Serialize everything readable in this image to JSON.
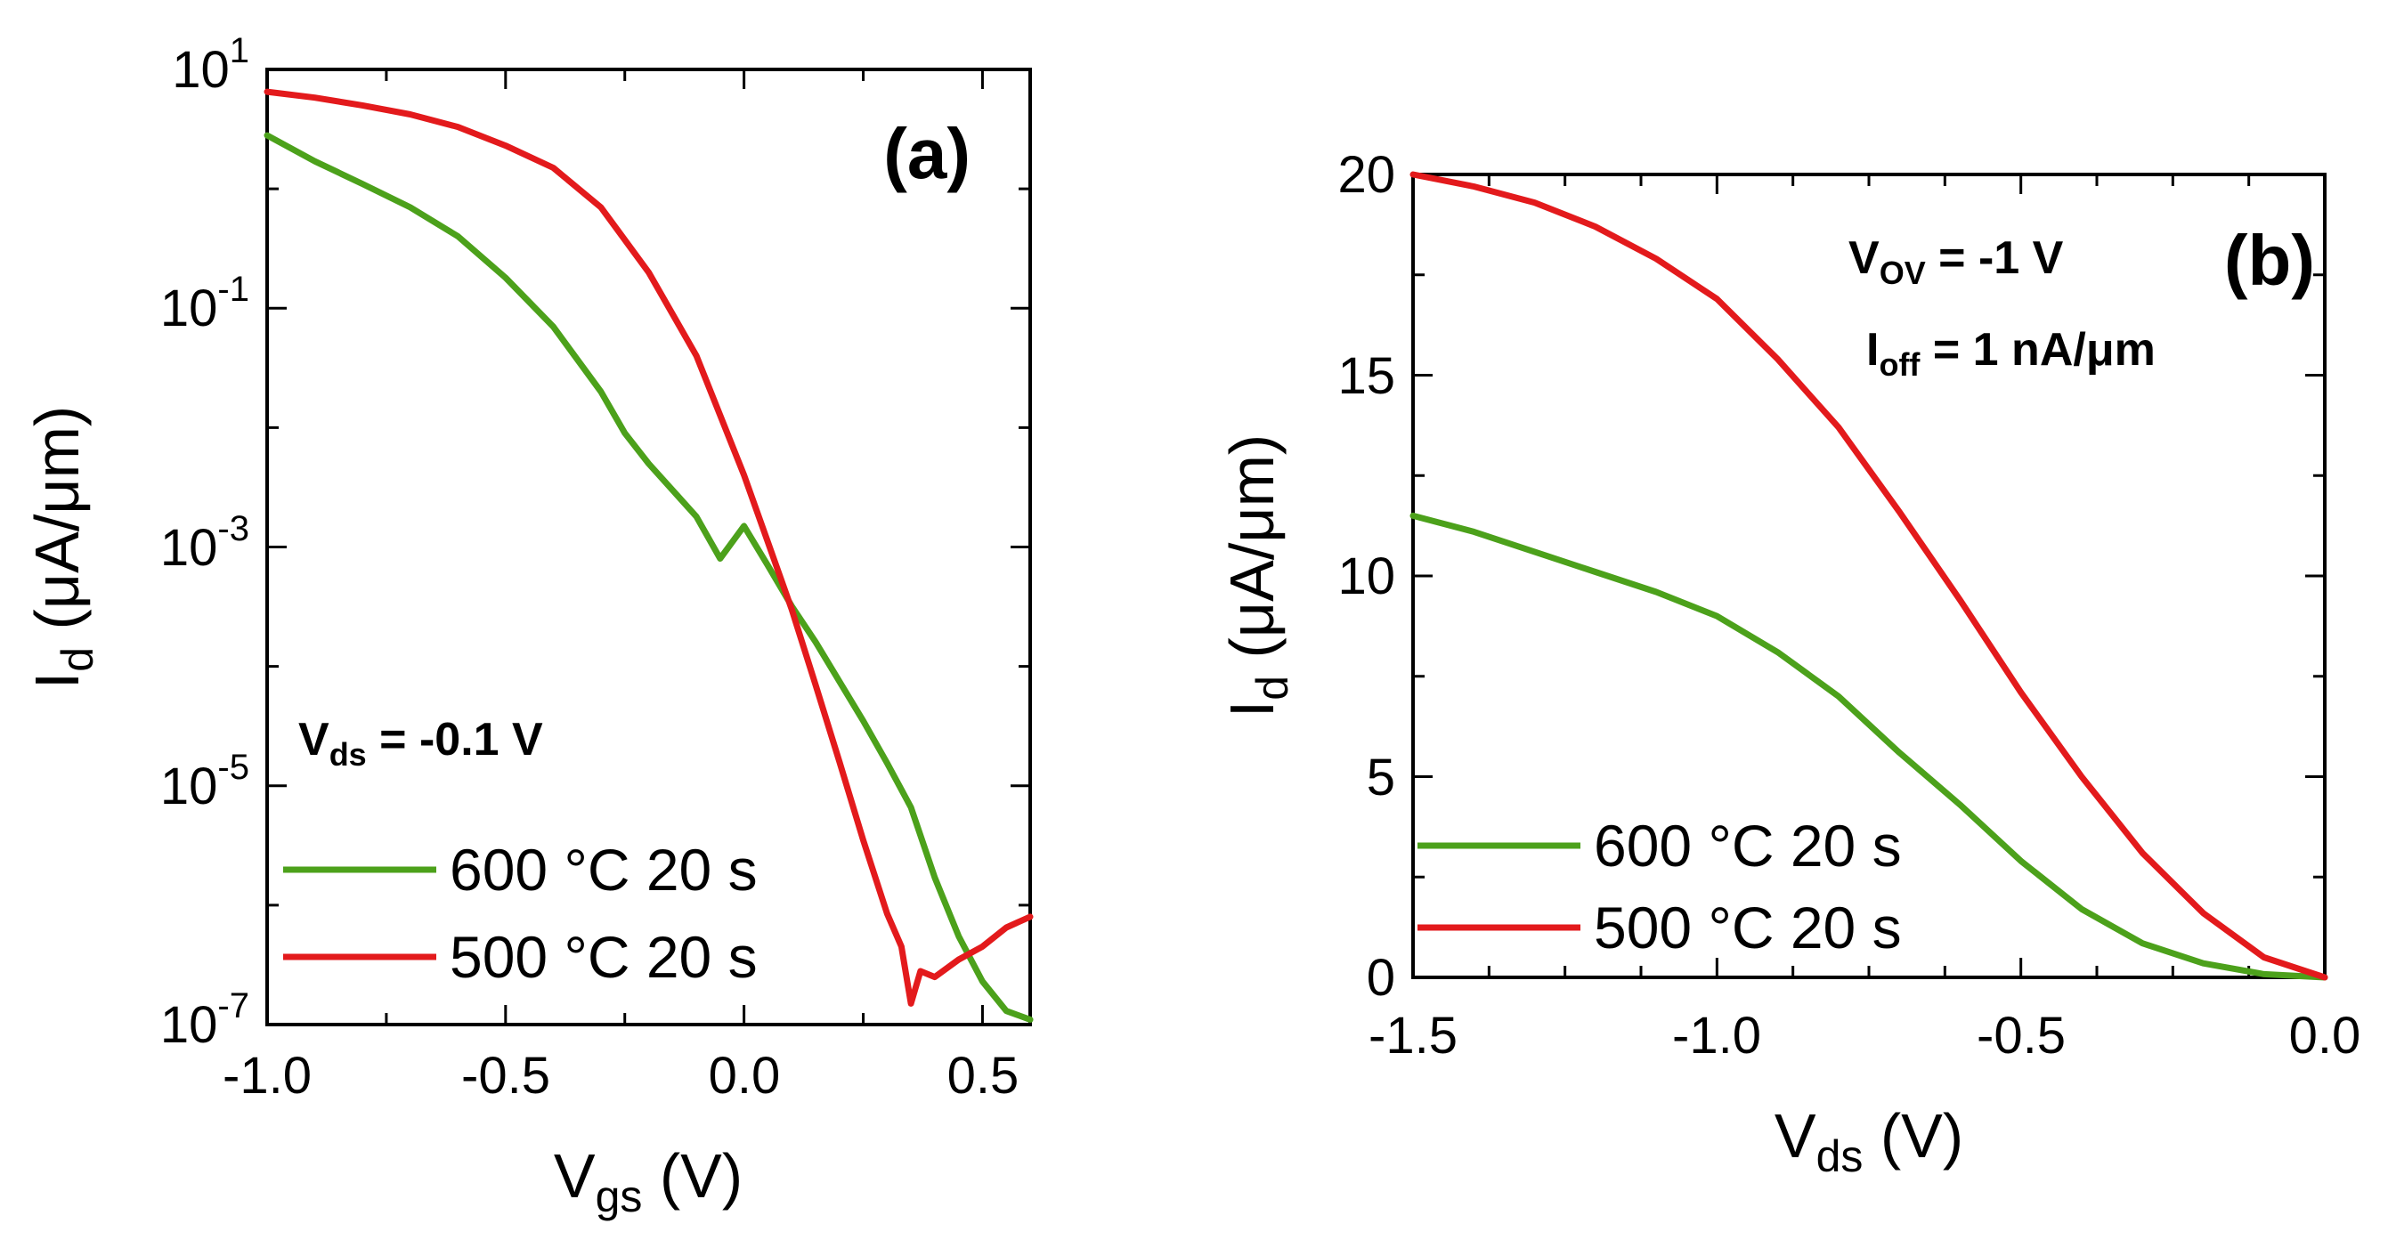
{
  "chart_data": [
    {
      "panel": "(a)",
      "type": "line",
      "xlabel_main": "V",
      "xlabel_sub": "gs",
      "xlabel_unit": " (V)",
      "ylabel_main": "I",
      "ylabel_sub": "d",
      "ylabel_unit": " (μA/μm)",
      "yscale": "log",
      "xlim": [
        -1.0,
        0.6
      ],
      "ylim_exp": [
        -7,
        1
      ],
      "xticks": [
        "-1.0",
        "-0.5",
        "0.0",
        "0.5"
      ],
      "xtick_values": [
        -1.0,
        -0.5,
        0.0,
        0.5
      ],
      "yticks_base": "10",
      "yticks_exp": [
        "1",
        "-1",
        "-3",
        "-5",
        "-7"
      ],
      "annotation_main": "V",
      "annotation_sub": "ds",
      "annotation_rest": " = -0.1 V",
      "series": [
        {
          "name": "600 °C 20 s",
          "color": "#4ca11b",
          "x": [
            -1.0,
            -0.9,
            -0.8,
            -0.7,
            -0.6,
            -0.5,
            -0.4,
            -0.3,
            -0.25,
            -0.2,
            -0.1,
            -0.05,
            0.0,
            0.05,
            0.1,
            0.15,
            0.2,
            0.25,
            0.3,
            0.35,
            0.4,
            0.45,
            0.5,
            0.55,
            0.6
          ],
          "y": [
            2.8,
            1.7,
            1.1,
            0.7,
            0.4,
            0.18,
            0.07,
            0.02,
            0.009,
            0.005,
            0.0018,
            0.0008,
            0.0015,
            0.0007,
            0.00032,
            0.00016,
            7.5e-05,
            3.5e-05,
            1.55e-05,
            6.6e-06,
            1.7e-06,
            5.5e-07,
            2.3e-07,
            1.3e-07,
            1.1e-07
          ]
        },
        {
          "name": "500 °C 20 s",
          "color": "#e31a1c",
          "x": [
            -1.0,
            -0.9,
            -0.8,
            -0.7,
            -0.6,
            -0.5,
            -0.4,
            -0.3,
            -0.2,
            -0.1,
            0.0,
            0.05,
            0.1,
            0.15,
            0.2,
            0.25,
            0.3,
            0.33,
            0.35,
            0.37,
            0.4,
            0.45,
            0.5,
            0.55,
            0.6
          ],
          "y": [
            6.5,
            5.8,
            5.0,
            4.2,
            3.3,
            2.3,
            1.5,
            0.7,
            0.2,
            0.04,
            0.004,
            0.0011,
            0.0003,
            7e-05,
            1.6e-05,
            3.5e-06,
            8.5e-07,
            4.5e-07,
            1.5e-07,
            2.8e-07,
            2.5e-07,
            3.5e-07,
            4.5e-07,
            6.5e-07,
            8e-07
          ]
        }
      ]
    },
    {
      "panel": "(b)",
      "type": "line",
      "xlabel_main": "V",
      "xlabel_sub": "ds",
      "xlabel_unit": " (V)",
      "ylabel_main": "I",
      "ylabel_sub": "d",
      "ylabel_unit": " (μA/μm)",
      "xlim": [
        -1.5,
        0.0
      ],
      "ylim": [
        0,
        20
      ],
      "xticks": [
        "-1.5",
        "-1.0",
        "-0.5",
        "0.0"
      ],
      "xtick_values": [
        -1.5,
        -1.0,
        -0.5,
        0.0
      ],
      "yticks": [
        "0",
        "5",
        "10",
        "15",
        "20"
      ],
      "ytick_values": [
        0,
        5,
        10,
        15,
        20
      ],
      "annotation1_main": "V",
      "annotation1_sub": "OV",
      "annotation1_rest": " = -1 V",
      "annotation2_main": "I",
      "annotation2_sub": "off",
      "annotation2_rest": " = 1 nA/μm",
      "series": [
        {
          "name": "600 °C  20 s",
          "color": "#4ca11b",
          "x": [
            -1.5,
            -1.4,
            -1.3,
            -1.2,
            -1.1,
            -1.0,
            -0.9,
            -0.8,
            -0.7,
            -0.6,
            -0.5,
            -0.4,
            -0.3,
            -0.2,
            -0.1,
            0.0
          ],
          "y": [
            11.5,
            11.1,
            10.6,
            10.1,
            9.6,
            9.0,
            8.1,
            7.0,
            5.6,
            4.3,
            2.9,
            1.7,
            0.85,
            0.35,
            0.08,
            0.0
          ]
        },
        {
          "name": "500 °C  20 s",
          "color": "#e31a1c",
          "x": [
            -1.5,
            -1.4,
            -1.3,
            -1.2,
            -1.1,
            -1.0,
            -0.9,
            -0.8,
            -0.7,
            -0.6,
            -0.5,
            -0.4,
            -0.3,
            -0.2,
            -0.1,
            0.0
          ],
          "y": [
            20.0,
            19.7,
            19.3,
            18.7,
            17.9,
            16.9,
            15.4,
            13.7,
            11.6,
            9.4,
            7.1,
            5.0,
            3.1,
            1.6,
            0.5,
            0.0
          ]
        }
      ]
    }
  ]
}
